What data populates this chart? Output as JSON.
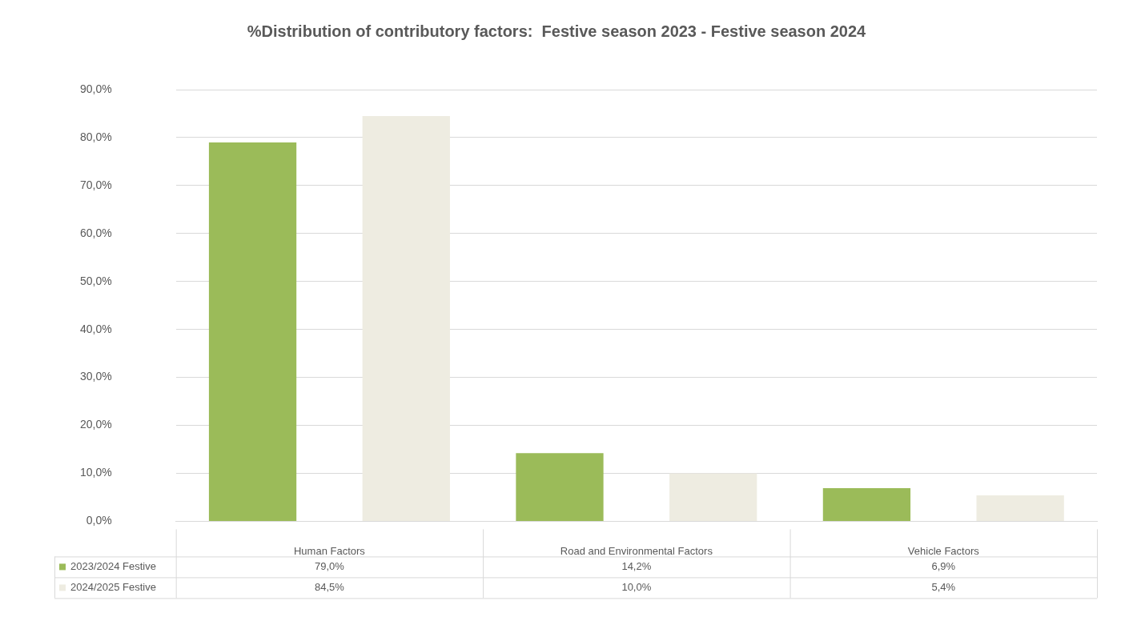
{
  "chart_data": {
    "type": "bar",
    "title": "%Distribution of contributory factors:  Festive season 2023 - Festive season 2024",
    "categories": [
      "Human Factors",
      "Road and Environmental Factors",
      "Vehicle Factors"
    ],
    "series": [
      {
        "name": "2023/2024 Festive",
        "color": "#9bbb59",
        "values": [
          79.0,
          14.2,
          6.9
        ],
        "value_labels": [
          "79,0%",
          "14,2%",
          "6,9%"
        ]
      },
      {
        "name": "2024/2025 Festive",
        "color": "#eeece1",
        "values": [
          84.5,
          10.0,
          5.4
        ],
        "value_labels": [
          "84,5%",
          "10,0%",
          "5,4%"
        ]
      }
    ],
    "ylim": [
      0,
      90
    ],
    "yticks": [
      {
        "value": 0,
        "label": "0,0%"
      },
      {
        "value": 10,
        "label": "10,0%"
      },
      {
        "value": 20,
        "label": "20,0%"
      },
      {
        "value": 30,
        "label": "30,0%"
      },
      {
        "value": 40,
        "label": "40,0%"
      },
      {
        "value": 50,
        "label": "50,0%"
      },
      {
        "value": 60,
        "label": "60,0%"
      },
      {
        "value": 70,
        "label": "70,0%"
      },
      {
        "value": 80,
        "label": "80,0%"
      },
      {
        "value": 90,
        "label": "90,0%"
      }
    ],
    "grid": "y",
    "legend": "bottom"
  }
}
